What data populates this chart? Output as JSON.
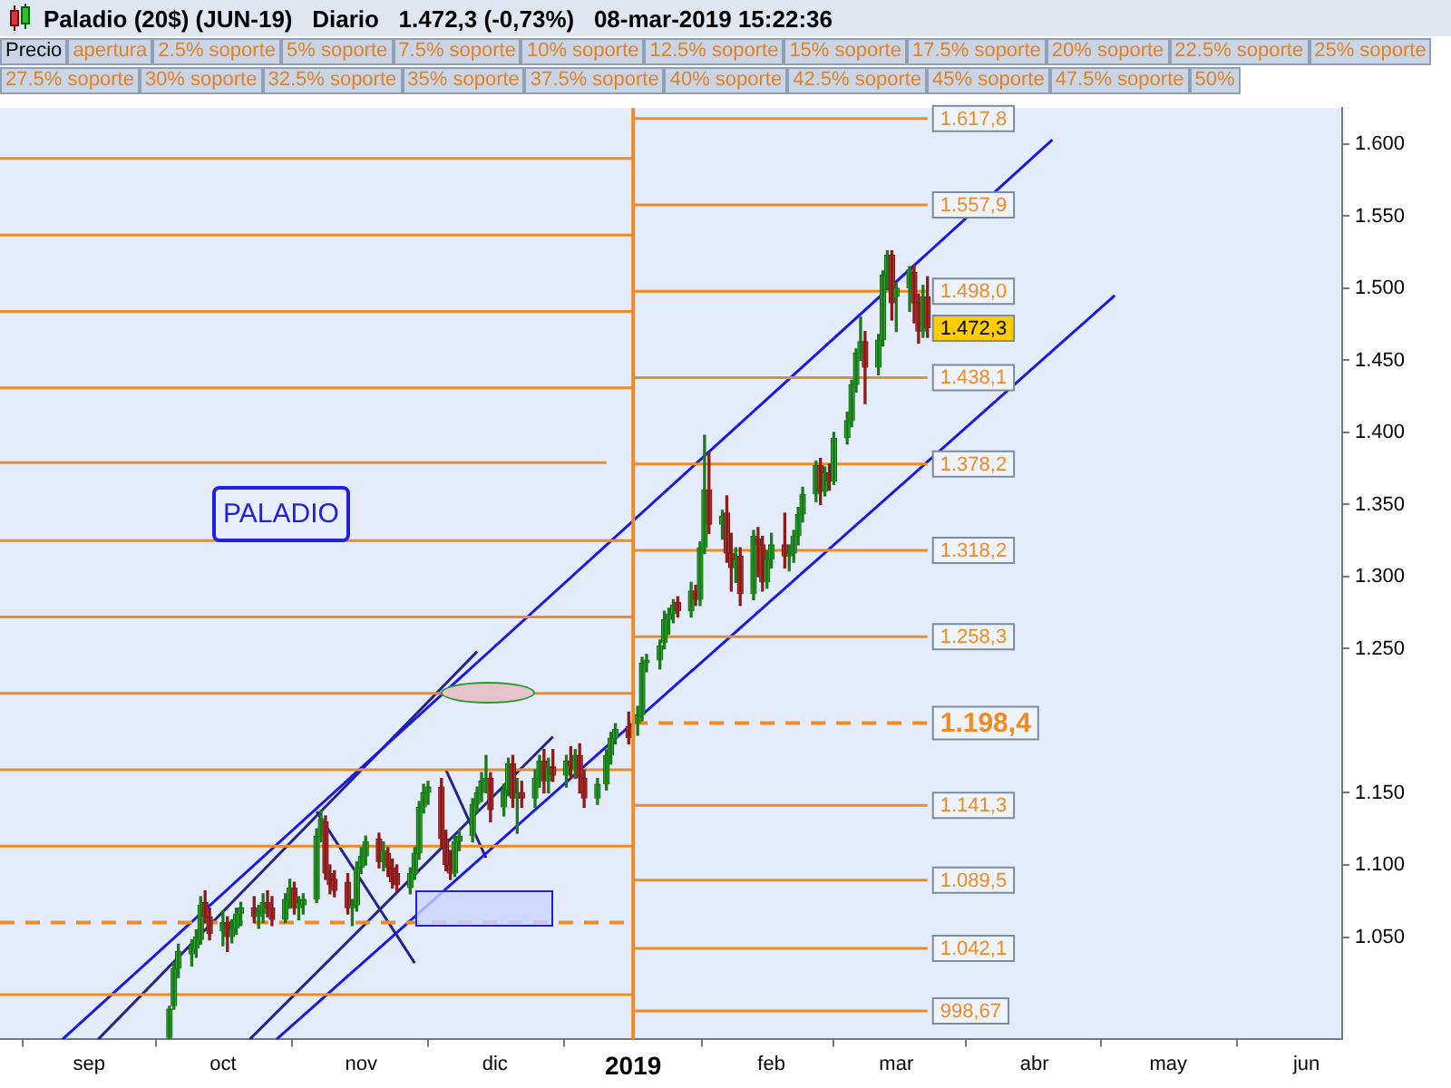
{
  "chart_data": {
    "type": "candlestick",
    "title": "Paladio (20$) (JUN-19)   Diario   1.472,3 (-0,73%)   08-mar-2019 15:22:36",
    "annotations": [
      "PALADIO",
      "Precio",
      "apertura",
      "2.5% soporte",
      "5% soporte",
      "7.5% soporte",
      "10% soporte",
      "12.5% soporte",
      "15% soporte",
      "17.5% soporte",
      "20% soporte",
      "22.5% soporte",
      "25% soporte",
      "27.5% soporte",
      "30% soporte",
      "32.5% soporte",
      "35% soporte",
      "37.5% soporte",
      "40% soporte",
      "42.5% soporte",
      "45% soporte",
      "47.5% soporte",
      "50%",
      {
        "text": "1.472,3",
        "x": "2019-03-08",
        "y": 1472.3
      }
    ],
    "x": [
      "2018-09-19",
      "2018-09-20",
      "2018-09-21",
      "2018-09-24",
      "2018-09-25",
      "2018-09-26",
      "2018-09-27",
      "2018-09-28",
      "2018-10-01",
      "2018-10-02",
      "2018-10-03",
      "2018-10-04",
      "2018-10-05",
      "2018-10-08",
      "2018-10-09",
      "2018-10-10",
      "2018-10-11",
      "2018-10-12",
      "2018-10-15",
      "2018-10-16",
      "2018-10-17",
      "2018-10-18",
      "2018-10-19",
      "2018-10-22",
      "2018-10-23",
      "2018-10-24",
      "2018-10-25",
      "2018-10-26",
      "2018-10-29",
      "2018-10-30",
      "2018-10-31",
      "2018-11-01",
      "2018-11-02",
      "2018-11-05",
      "2018-11-06",
      "2018-11-07",
      "2018-11-08",
      "2018-11-09",
      "2018-11-12",
      "2018-11-13",
      "2018-11-14",
      "2018-11-15",
      "2018-11-16",
      "2018-11-19",
      "2018-11-20",
      "2018-11-21",
      "2018-11-22",
      "2018-11-23",
      "2018-11-26",
      "2018-11-27",
      "2018-11-28",
      "2018-11-29",
      "2018-11-30",
      "2018-12-03",
      "2018-12-04",
      "2018-12-05",
      "2018-12-06",
      "2018-12-07",
      "2018-12-10",
      "2018-12-11",
      "2018-12-12",
      "2018-12-13",
      "2018-12-14",
      "2018-12-17",
      "2018-12-18",
      "2018-12-19",
      "2018-12-20",
      "2018-12-21",
      "2018-12-24",
      "2018-12-26",
      "2018-12-27",
      "2018-12-28",
      "2018-12-31",
      "2019-01-02",
      "2019-01-03",
      "2019-01-04",
      "2019-01-07",
      "2019-01-08",
      "2019-01-09",
      "2019-01-10",
      "2019-01-11",
      "2019-01-14",
      "2019-01-15",
      "2019-01-16",
      "2019-01-17",
      "2019-01-18",
      "2019-01-21",
      "2019-01-22",
      "2019-01-23",
      "2019-01-24",
      "2019-01-25",
      "2019-01-28",
      "2019-01-29",
      "2019-01-30",
      "2019-01-31",
      "2019-02-01",
      "2019-02-04",
      "2019-02-05",
      "2019-02-06",
      "2019-02-07",
      "2019-02-08",
      "2019-02-11",
      "2019-02-12",
      "2019-02-13",
      "2019-02-14",
      "2019-02-15",
      "2019-02-18",
      "2019-02-19",
      "2019-02-20",
      "2019-02-21",
      "2019-02-22",
      "2019-02-25",
      "2019-02-26",
      "2019-02-27",
      "2019-02-28",
      "2019-03-01",
      "2019-03-04",
      "2019-03-05",
      "2019-03-06",
      "2019-03-07",
      "2019-03-08"
    ],
    "ohlc": [
      [
        980,
        1002,
        979,
        1000
      ],
      [
        1002,
        1032,
        1000,
        1028
      ],
      [
        1028,
        1045,
        1022,
        1040
      ],
      [
        1038,
        1048,
        1030,
        1044
      ],
      [
        1042,
        1055,
        1036,
        1050
      ],
      [
        1048,
        1078,
        1045,
        1072
      ],
      [
        1074,
        1082,
        1060,
        1064
      ],
      [
        1064,
        1070,
        1048,
        1052
      ],
      [
        1054,
        1068,
        1044,
        1060
      ],
      [
        1060,
        1064,
        1040,
        1050
      ],
      [
        1050,
        1062,
        1046,
        1056
      ],
      [
        1056,
        1070,
        1052,
        1066
      ],
      [
        1066,
        1074,
        1058,
        1070
      ],
      [
        1070,
        1078,
        1060,
        1064
      ],
      [
        1064,
        1072,
        1056,
        1068
      ],
      [
        1066,
        1080,
        1060,
        1074
      ],
      [
        1074,
        1082,
        1064,
        1070
      ],
      [
        1070,
        1078,
        1058,
        1062
      ],
      [
        1062,
        1080,
        1060,
        1076
      ],
      [
        1076,
        1090,
        1070,
        1084
      ],
      [
        1084,
        1088,
        1066,
        1070
      ],
      [
        1070,
        1078,
        1062,
        1074
      ],
      [
        1072,
        1080,
        1066,
        1076
      ],
      [
        1076,
        1125,
        1074,
        1120
      ],
      [
        1120,
        1138,
        1116,
        1132
      ],
      [
        1130,
        1134,
        1090,
        1094
      ],
      [
        1094,
        1100,
        1080,
        1086
      ],
      [
        1090,
        1096,
        1078,
        1082
      ],
      [
        1088,
        1094,
        1066,
        1070
      ],
      [
        1070,
        1076,
        1058,
        1072
      ],
      [
        1072,
        1102,
        1068,
        1098
      ],
      [
        1098,
        1112,
        1094,
        1106
      ],
      [
        1106,
        1120,
        1100,
        1116
      ],
      [
        1118,
        1122,
        1098,
        1102
      ],
      [
        1102,
        1116,
        1096,
        1110
      ],
      [
        1108,
        1112,
        1092,
        1098
      ],
      [
        1098,
        1104,
        1084,
        1088
      ],
      [
        1094,
        1100,
        1082,
        1086
      ],
      [
        1084,
        1098,
        1080,
        1094
      ],
      [
        1094,
        1112,
        1090,
        1108
      ],
      [
        1108,
        1144,
        1104,
        1140
      ],
      [
        1140,
        1156,
        1136,
        1150
      ],
      [
        1150,
        1158,
        1142,
        1154
      ],
      [
        1154,
        1160,
        1112,
        1118
      ],
      [
        1118,
        1124,
        1096,
        1100
      ],
      [
        1100,
        1110,
        1090,
        1094
      ],
      [
        1094,
        1120,
        1092,
        1116
      ],
      [
        1116,
        1124,
        1110,
        1120
      ],
      [
        1120,
        1146,
        1116,
        1142
      ],
      [
        1142,
        1154,
        1136,
        1150
      ],
      [
        1150,
        1164,
        1144,
        1158
      ],
      [
        1158,
        1176,
        1150,
        1160
      ],
      [
        1160,
        1164,
        1130,
        1138
      ],
      [
        1140,
        1156,
        1134,
        1152
      ],
      [
        1152,
        1174,
        1148,
        1170
      ],
      [
        1170,
        1176,
        1140,
        1146
      ],
      [
        1146,
        1160,
        1122,
        1150
      ],
      [
        1150,
        1158,
        1140,
        1146
      ],
      [
        1146,
        1166,
        1140,
        1160
      ],
      [
        1160,
        1176,
        1154,
        1172
      ],
      [
        1172,
        1180,
        1150,
        1158
      ],
      [
        1158,
        1174,
        1150,
        1168
      ],
      [
        1168,
        1180,
        1158,
        1162
      ],
      [
        1162,
        1176,
        1154,
        1172
      ],
      [
        1172,
        1182,
        1160,
        1168
      ],
      [
        1166,
        1180,
        1160,
        1176
      ],
      [
        1176,
        1184,
        1150,
        1160
      ],
      [
        1160,
        1166,
        1140,
        1146
      ],
      [
        1146,
        1160,
        1142,
        1156
      ],
      [
        1156,
        1180,
        1152,
        1176
      ],
      [
        1176,
        1192,
        1170,
        1188
      ],
      [
        1188,
        1198,
        1184,
        1194
      ],
      [
        1196,
        1206,
        1184,
        1188
      ],
      [
        1198,
        1210,
        1190,
        1204
      ],
      [
        1204,
        1244,
        1200,
        1240
      ],
      [
        1240,
        1246,
        1234,
        1242
      ],
      [
        1242,
        1256,
        1236,
        1252
      ],
      [
        1254,
        1276,
        1250,
        1270
      ],
      [
        1270,
        1278,
        1260,
        1274
      ],
      [
        1274,
        1284,
        1268,
        1280
      ],
      [
        1282,
        1286,
        1272,
        1276
      ],
      [
        1276,
        1296,
        1272,
        1290
      ],
      [
        1290,
        1294,
        1280,
        1284
      ],
      [
        1284,
        1324,
        1280,
        1320
      ],
      [
        1320,
        1398,
        1316,
        1360
      ],
      [
        1360,
        1386,
        1330,
        1336
      ],
      [
        1336,
        1346,
        1326,
        1342
      ],
      [
        1344,
        1356,
        1310,
        1316
      ],
      [
        1316,
        1330,
        1290,
        1306
      ],
      [
        1306,
        1320,
        1296,
        1312
      ],
      [
        1314,
        1320,
        1280,
        1288
      ],
      [
        1288,
        1332,
        1284,
        1328
      ],
      [
        1326,
        1334,
        1300,
        1322
      ],
      [
        1322,
        1328,
        1290,
        1296
      ],
      [
        1296,
        1318,
        1292,
        1312
      ],
      [
        1312,
        1330,
        1306,
        1322
      ],
      [
        1322,
        1344,
        1306,
        1314
      ],
      [
        1314,
        1322,
        1304,
        1316
      ],
      [
        1316,
        1332,
        1310,
        1328
      ],
      [
        1328,
        1348,
        1322,
        1343
      ],
      [
        1343,
        1362,
        1338,
        1357
      ],
      [
        1357,
        1380,
        1352,
        1377
      ],
      [
        1377,
        1382,
        1350,
        1359
      ],
      [
        1359,
        1376,
        1356,
        1372
      ],
      [
        1372,
        1378,
        1360,
        1366
      ],
      [
        1366,
        1400,
        1364,
        1396
      ],
      [
        1396,
        1414,
        1392,
        1408
      ],
      [
        1408,
        1436,
        1404,
        1433
      ],
      [
        1433,
        1458,
        1428,
        1455
      ],
      [
        1455,
        1480,
        1450,
        1463
      ],
      [
        1463,
        1470,
        1420,
        1445
      ],
      [
        1445,
        1468,
        1440,
        1464
      ],
      [
        1464,
        1512,
        1460,
        1509
      ],
      [
        1509,
        1526,
        1500,
        1523
      ],
      [
        1523,
        1526,
        1478,
        1490
      ],
      [
        1494,
        1504,
        1470,
        1500
      ],
      [
        1500,
        1515,
        1484,
        1513
      ],
      [
        1511,
        1516,
        1476,
        1490
      ],
      [
        1490,
        1496,
        1462,
        1470
      ],
      [
        1470,
        1502,
        1466,
        1494
      ],
      [
        1494,
        1508,
        1466,
        1472.3
      ]
    ],
    "series": [
      {
        "type": "line",
        "color": "#f08a24",
        "x": [
          "2018-08-12",
          "2019-01-01"
        ],
        "values": [
          1590,
          1590
        ]
      },
      {
        "type": "line",
        "color": "#f08a24",
        "x": [
          "2018-08-12",
          "2019-01-01"
        ],
        "values": [
          1537,
          1537
        ]
      },
      {
        "type": "line",
        "color": "#f08a24",
        "x": [
          "2018-08-12",
          "2019-01-01"
        ],
        "values": [
          1484,
          1484
        ]
      },
      {
        "type": "line",
        "color": "#f08a24",
        "x": [
          "2018-08-12",
          "2019-01-01"
        ],
        "values": [
          1431,
          1431
        ]
      },
      {
        "type": "line",
        "color": "#f08a24",
        "x": [
          "2018-08-12",
          "2018-12-26"
        ],
        "values": [
          1379,
          1379
        ]
      },
      {
        "type": "line",
        "color": "#f08a24",
        "x": [
          "2018-08-12",
          "2019-01-01"
        ],
        "values": [
          1325,
          1325
        ]
      },
      {
        "type": "line",
        "color": "#f08a24",
        "x": [
          "2018-08-12",
          "2019-01-01"
        ],
        "values": [
          1272,
          1272
        ]
      },
      {
        "type": "line",
        "color": "#f08a24",
        "x": [
          "2018-08-12",
          "2019-01-01"
        ],
        "values": [
          1219,
          1219
        ]
      },
      {
        "type": "line",
        "color": "#f08a24",
        "x": [
          "2018-08-12",
          "2019-01-01"
        ],
        "values": [
          1166,
          1166
        ]
      },
      {
        "type": "line",
        "color": "#f08a24",
        "x": [
          "2018-08-12",
          "2019-01-01"
        ],
        "values": [
          1113,
          1113
        ]
      },
      {
        "type": "line",
        "color": "#f08a24",
        "line_style": "dashed",
        "x": [
          "2018-08-12",
          "2019-01-01"
        ],
        "values": [
          1060,
          1060
        ]
      },
      {
        "type": "line",
        "color": "#f08a24",
        "x": [
          "2018-08-12",
          "2019-01-01"
        ],
        "values": [
          1010,
          1010
        ]
      },
      {
        "type": "line",
        "color": "#f08a24",
        "x": [
          "2019-01-01",
          "2019-03-08"
        ],
        "values": [
          1617.8,
          1617.8
        ],
        "value_labels": [
          null,
          "1.617,8"
        ]
      },
      {
        "type": "line",
        "color": "#f08a24",
        "x": [
          "2019-01-01",
          "2019-03-08"
        ],
        "values": [
          1557.9,
          1557.9
        ],
        "value_labels": [
          null,
          "1.557,9"
        ]
      },
      {
        "type": "line",
        "color": "#f08a24",
        "x": [
          "2019-01-01",
          "2019-03-08"
        ],
        "values": [
          1498.0,
          1498.0
        ],
        "value_labels": [
          null,
          "1.498,0"
        ]
      },
      {
        "type": "line",
        "color": "#f08a24",
        "x": [
          "2019-01-01",
          "2019-03-08"
        ],
        "values": [
          1438.1,
          1438.1
        ],
        "value_labels": [
          null,
          "1.438,1"
        ]
      },
      {
        "type": "line",
        "color": "#f08a24",
        "x": [
          "2019-01-01",
          "2019-03-08"
        ],
        "values": [
          1378.2,
          1378.2
        ],
        "value_labels": [
          null,
          "1.378,2"
        ]
      },
      {
        "type": "line",
        "color": "#f08a24",
        "x": [
          "2019-01-01",
          "2019-03-08"
        ],
        "values": [
          1318.2,
          1318.2
        ],
        "value_labels": [
          null,
          "1.318,2"
        ]
      },
      {
        "type": "line",
        "color": "#f08a24",
        "x": [
          "2019-01-01",
          "2019-03-08"
        ],
        "values": [
          1258.3,
          1258.3
        ],
        "value_labels": [
          null,
          "1.258,3"
        ]
      },
      {
        "type": "line",
        "color": "#f08a24",
        "line_style": "dashed",
        "x": [
          "2019-01-01",
          "2019-03-08"
        ],
        "values": [
          1198.4,
          1198.4
        ],
        "value_labels": [
          null,
          "1.198,4"
        ]
      },
      {
        "type": "line",
        "color": "#f08a24",
        "x": [
          "2019-01-01",
          "2019-03-08"
        ],
        "values": [
          1141.3,
          1141.3
        ],
        "value_labels": [
          null,
          "1.141,3"
        ]
      },
      {
        "type": "line",
        "color": "#f08a24",
        "x": [
          "2019-01-01",
          "2019-03-08"
        ],
        "values": [
          1089.5,
          1089.5
        ],
        "value_labels": [
          null,
          "1.089,5"
        ]
      },
      {
        "type": "line",
        "color": "#f08a24",
        "x": [
          "2019-01-01",
          "2019-03-08"
        ],
        "values": [
          1042.1,
          1042.1
        ],
        "value_labels": [
          null,
          "1.042,1"
        ]
      },
      {
        "type": "line",
        "color": "#f08a24",
        "x": [
          "2019-01-01",
          "2019-03-08"
        ],
        "values": [
          998.67,
          998.67
        ],
        "value_labels": [
          null,
          "998,67"
        ]
      },
      {
        "type": "line",
        "color": "#1a1ae6",
        "x": [
          "2018-08-26",
          "2019-04-05"
        ],
        "values": [
          979,
          1603
        ]
      },
      {
        "type": "line",
        "color": "#1a1ae6",
        "x": [
          "2018-10-13",
          "2019-04-19"
        ],
        "values": [
          979,
          1495
        ]
      },
      {
        "type": "line",
        "color": "#24248c",
        "x": [
          "2018-09-03",
          "2018-11-27"
        ],
        "values": [
          979,
          1248
        ]
      },
      {
        "type": "line",
        "color": "#24248c",
        "x": [
          "2018-10-07",
          "2018-12-14"
        ],
        "values": [
          979,
          1189
        ]
      },
      {
        "type": "line",
        "color": "#24248c",
        "x": [
          "2018-10-22",
          "2018-11-13"
        ],
        "values": [
          1137,
          1032
        ]
      },
      {
        "type": "line",
        "color": "#24248c",
        "x": [
          "2018-11-20",
          "2018-11-29"
        ],
        "values": [
          1166,
          1105
        ]
      }
    ],
    "ref_lines": [
      {
        "axis": "x",
        "value": "2019-01-01",
        "color": "#f08a24"
      }
    ],
    "xlim": [
      "2018-08-12",
      "2019-06-09"
    ],
    "xticks": [
      {
        "value": "2018-09-01",
        "label": "sep"
      },
      {
        "value": "2018-10-01",
        "label": "oct"
      },
      {
        "value": "2018-11-01",
        "label": "nov"
      },
      {
        "value": "2018-12-01",
        "label": "dic"
      },
      {
        "value": "2019-01-01",
        "label": "2019"
      },
      {
        "value": "2019-02-01",
        "label": "feb"
      },
      {
        "value": "2019-03-01",
        "label": "mar"
      },
      {
        "value": "2019-04-01",
        "label": "abr"
      },
      {
        "value": "2019-05-01",
        "label": "may"
      },
      {
        "value": "2019-06-01",
        "label": "jun"
      }
    ],
    "ylim": [
      979,
      1625
    ],
    "yticks": [
      {
        "value": 1050,
        "label": "1.050"
      },
      {
        "value": 1100,
        "label": "1.100"
      },
      {
        "value": 1150,
        "label": "1.150"
      },
      {
        "value": 1250,
        "label": "1.250"
      },
      {
        "value": 1300,
        "label": "1.300"
      },
      {
        "value": 1350,
        "label": "1.350"
      },
      {
        "value": 1400,
        "label": "1.400"
      },
      {
        "value": 1450,
        "label": "1.450"
      },
      {
        "value": 1500,
        "label": "1.500"
      },
      {
        "value": 1550,
        "label": "1.550"
      },
      {
        "value": 1600,
        "label": "1.600"
      }
    ],
    "marker": "none"
  }
}
